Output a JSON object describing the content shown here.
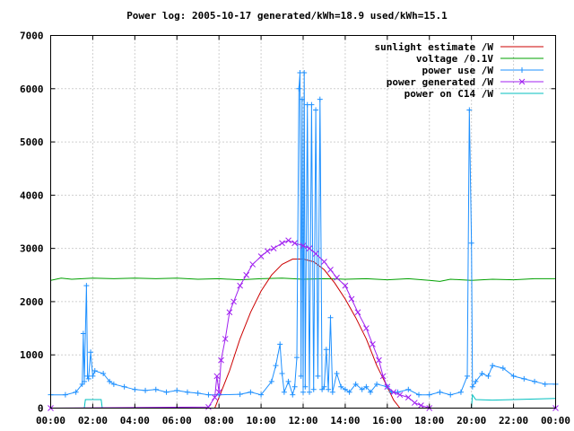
{
  "chart_data": {
    "type": "line",
    "title": "Power log: 2005-10-17 generated/kWh=18.9 used/kWh=15.1",
    "xlabel": "",
    "ylabel": "",
    "xlim": [
      0,
      24
    ],
    "ylim": [
      0,
      7000
    ],
    "grid": true,
    "legend_position": "top-right",
    "x_tick_labels": [
      "00:00",
      "02:00",
      "04:00",
      "06:00",
      "08:00",
      "10:00",
      "12:00",
      "14:00",
      "16:00",
      "18:00",
      "20:00",
      "22:00",
      "00:00"
    ],
    "y_tick_labels": [
      "0",
      "1000",
      "2000",
      "3000",
      "4000",
      "5000",
      "6000",
      "7000"
    ],
    "series": [
      {
        "name": "sunlight estimate /W",
        "color": "#cc0000",
        "marker": "none",
        "points": [
          [
            0,
            0
          ],
          [
            7.8,
            0
          ],
          [
            8.0,
            200
          ],
          [
            8.5,
            700
          ],
          [
            9.0,
            1300
          ],
          [
            9.5,
            1800
          ],
          [
            10.0,
            2200
          ],
          [
            10.5,
            2500
          ],
          [
            11.0,
            2700
          ],
          [
            11.5,
            2800
          ],
          [
            12.0,
            2800
          ],
          [
            12.5,
            2750
          ],
          [
            13.0,
            2600
          ],
          [
            13.5,
            2350
          ],
          [
            14.0,
            2050
          ],
          [
            14.5,
            1700
          ],
          [
            15.0,
            1300
          ],
          [
            15.5,
            800
          ],
          [
            16.0,
            400
          ],
          [
            16.3,
            150
          ],
          [
            16.6,
            0
          ],
          [
            24,
            0
          ]
        ]
      },
      {
        "name": "voltage /0.1V",
        "color": "#00a000",
        "marker": "none",
        "points": [
          [
            0,
            2400
          ],
          [
            0.5,
            2440
          ],
          [
            1.0,
            2420
          ],
          [
            2.0,
            2440
          ],
          [
            3.0,
            2430
          ],
          [
            4.0,
            2440
          ],
          [
            5.0,
            2430
          ],
          [
            6.0,
            2440
          ],
          [
            7.0,
            2420
          ],
          [
            8.0,
            2430
          ],
          [
            9.0,
            2410
          ],
          [
            10.0,
            2430
          ],
          [
            11.0,
            2440
          ],
          [
            12.0,
            2420
          ],
          [
            13.0,
            2430
          ],
          [
            14.0,
            2420
          ],
          [
            15.0,
            2430
          ],
          [
            16.0,
            2410
          ],
          [
            17.0,
            2430
          ],
          [
            18.0,
            2400
          ],
          [
            18.5,
            2380
          ],
          [
            19.0,
            2420
          ],
          [
            20.0,
            2400
          ],
          [
            21.0,
            2420
          ],
          [
            22.0,
            2410
          ],
          [
            23.0,
            2430
          ],
          [
            24,
            2430
          ]
        ]
      },
      {
        "name": "power use /W",
        "color": "#1e90ff",
        "marker": "plus",
        "points": [
          [
            0,
            250
          ],
          [
            0.7,
            250
          ],
          [
            1.2,
            300
          ],
          [
            1.5,
            450
          ],
          [
            1.55,
            1400
          ],
          [
            1.6,
            500
          ],
          [
            1.7,
            2300
          ],
          [
            1.75,
            600
          ],
          [
            1.8,
            550
          ],
          [
            1.9,
            1050
          ],
          [
            2.0,
            600
          ],
          [
            2.1,
            700
          ],
          [
            2.5,
            650
          ],
          [
            2.8,
            500
          ],
          [
            3.0,
            450
          ],
          [
            3.5,
            400
          ],
          [
            4.0,
            350
          ],
          [
            4.5,
            330
          ],
          [
            5.0,
            350
          ],
          [
            5.5,
            300
          ],
          [
            6.0,
            330
          ],
          [
            6.5,
            300
          ],
          [
            7.0,
            280
          ],
          [
            7.5,
            250
          ],
          [
            8.0,
            250
          ],
          [
            9.0,
            260
          ],
          [
            9.5,
            300
          ],
          [
            10.0,
            250
          ],
          [
            10.5,
            500
          ],
          [
            10.7,
            800
          ],
          [
            10.9,
            1200
          ],
          [
            11.0,
            650
          ],
          [
            11.1,
            300
          ],
          [
            11.3,
            500
          ],
          [
            11.5,
            250
          ],
          [
            11.6,
            400
          ],
          [
            11.7,
            950
          ],
          [
            11.8,
            6000
          ],
          [
            11.85,
            6300
          ],
          [
            11.9,
            600
          ],
          [
            11.95,
            5800
          ],
          [
            12.0,
            300
          ],
          [
            12.05,
            6300
          ],
          [
            12.1,
            400
          ],
          [
            12.2,
            5700
          ],
          [
            12.3,
            300
          ],
          [
            12.4,
            5700
          ],
          [
            12.5,
            350
          ],
          [
            12.6,
            5600
          ],
          [
            12.7,
            600
          ],
          [
            12.8,
            5800
          ],
          [
            12.9,
            350
          ],
          [
            13.0,
            400
          ],
          [
            13.1,
            1100
          ],
          [
            13.2,
            350
          ],
          [
            13.3,
            1700
          ],
          [
            13.4,
            300
          ],
          [
            13.6,
            650
          ],
          [
            13.8,
            400
          ],
          [
            14.0,
            350
          ],
          [
            14.2,
            300
          ],
          [
            14.5,
            450
          ],
          [
            14.8,
            350
          ],
          [
            15.0,
            400
          ],
          [
            15.2,
            300
          ],
          [
            15.5,
            450
          ],
          [
            16.0,
            400
          ],
          [
            16.2,
            300
          ],
          [
            16.5,
            300
          ],
          [
            17.0,
            350
          ],
          [
            17.5,
            250
          ],
          [
            18.0,
            250
          ],
          [
            18.5,
            300
          ],
          [
            19.0,
            250
          ],
          [
            19.5,
            300
          ],
          [
            19.8,
            600
          ],
          [
            19.9,
            5600
          ],
          [
            20.0,
            3100
          ],
          [
            20.05,
            400
          ],
          [
            20.2,
            500
          ],
          [
            20.5,
            650
          ],
          [
            20.8,
            600
          ],
          [
            21.0,
            800
          ],
          [
            21.5,
            750
          ],
          [
            22.0,
            600
          ],
          [
            22.5,
            550
          ],
          [
            23.0,
            500
          ],
          [
            23.5,
            450
          ],
          [
            24,
            450
          ]
        ]
      },
      {
        "name": "power generated /W",
        "color": "#a020f0",
        "marker": "cross",
        "points": [
          [
            0,
            0
          ],
          [
            7.5,
            20
          ],
          [
            7.8,
            200
          ],
          [
            7.9,
            600
          ],
          [
            8.0,
            300
          ],
          [
            8.1,
            900
          ],
          [
            8.3,
            1300
          ],
          [
            8.5,
            1800
          ],
          [
            8.7,
            2000
          ],
          [
            9.0,
            2300
          ],
          [
            9.3,
            2500
          ],
          [
            9.6,
            2700
          ],
          [
            10.0,
            2850
          ],
          [
            10.3,
            2950
          ],
          [
            10.6,
            3000
          ],
          [
            11.0,
            3100
          ],
          [
            11.3,
            3150
          ],
          [
            11.6,
            3100
          ],
          [
            12.0,
            3050
          ],
          [
            12.3,
            3000
          ],
          [
            12.6,
            2900
          ],
          [
            13.0,
            2750
          ],
          [
            13.3,
            2600
          ],
          [
            13.6,
            2450
          ],
          [
            14.0,
            2300
          ],
          [
            14.3,
            2050
          ],
          [
            14.6,
            1800
          ],
          [
            15.0,
            1500
          ],
          [
            15.3,
            1200
          ],
          [
            15.6,
            900
          ],
          [
            15.8,
            600
          ],
          [
            16.0,
            400
          ],
          [
            16.3,
            300
          ],
          [
            16.6,
            250
          ],
          [
            17.0,
            200
          ],
          [
            17.3,
            100
          ],
          [
            17.6,
            50
          ],
          [
            18.0,
            0
          ],
          [
            24,
            0
          ]
        ]
      },
      {
        "name": "power on C14 /W",
        "color": "#00bfbf",
        "marker": "none",
        "points": [
          [
            0,
            0
          ],
          [
            1.6,
            0
          ],
          [
            1.65,
            160
          ],
          [
            2.4,
            160
          ],
          [
            2.45,
            0
          ],
          [
            20.0,
            0
          ],
          [
            20.05,
            250
          ],
          [
            20.2,
            160
          ],
          [
            21.0,
            150
          ],
          [
            22.0,
            160
          ],
          [
            23.0,
            170
          ],
          [
            24,
            180
          ]
        ]
      }
    ]
  }
}
